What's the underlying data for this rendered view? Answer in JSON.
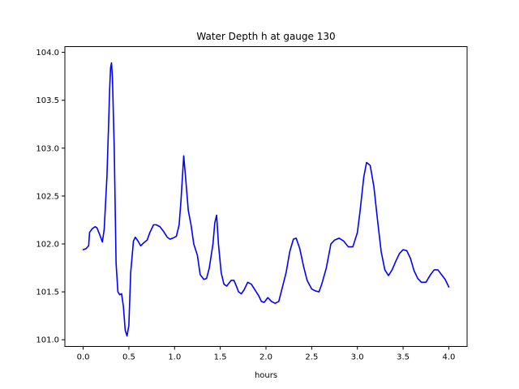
{
  "chart_data": {
    "type": "line",
    "title": "Water Depth h at gauge 130",
    "xlabel": "hours",
    "ylabel": "",
    "xlim": [
      -0.2,
      4.2
    ],
    "ylim": [
      100.93,
      104.06
    ],
    "xticks": [
      0.0,
      0.5,
      1.0,
      1.5,
      2.0,
      2.5,
      3.0,
      3.5,
      4.0
    ],
    "xtick_labels": [
      "0.0",
      "0.5",
      "1.0",
      "1.5",
      "2.0",
      "2.5",
      "3.0",
      "3.5",
      "4.0"
    ],
    "yticks": [
      101.0,
      101.5,
      102.0,
      102.5,
      103.0,
      103.5,
      104.0
    ],
    "ytick_labels": [
      "101.0",
      "101.5",
      "102.0",
      "102.5",
      "103.0",
      "103.5",
      "104.0"
    ],
    "grid": false,
    "series": [
      {
        "color": "#0000ff",
        "x": [
          0.0,
          0.03,
          0.06,
          0.07,
          0.1,
          0.13,
          0.15,
          0.18,
          0.21,
          0.23,
          0.26,
          0.28,
          0.29,
          0.3,
          0.31,
          0.32,
          0.34,
          0.36,
          0.38,
          0.4,
          0.42,
          0.44,
          0.46,
          0.48,
          0.5,
          0.52,
          0.55,
          0.57,
          0.6,
          0.63,
          0.66,
          0.7,
          0.73,
          0.77,
          0.8,
          0.84,
          0.88,
          0.92,
          0.95,
          0.98,
          1.02,
          1.05,
          1.07,
          1.1,
          1.12,
          1.15,
          1.18,
          1.21,
          1.25,
          1.28,
          1.32,
          1.35,
          1.38,
          1.42,
          1.44,
          1.46,
          1.48,
          1.51,
          1.54,
          1.57,
          1.62,
          1.65,
          1.68,
          1.7,
          1.73,
          1.76,
          1.8,
          1.84,
          1.88,
          1.92,
          1.95,
          1.98,
          2.02,
          2.06,
          2.1,
          2.14,
          2.18,
          2.22,
          2.26,
          2.3,
          2.33,
          2.37,
          2.41,
          2.45,
          2.5,
          2.54,
          2.58,
          2.61,
          2.66,
          2.71,
          2.75,
          2.8,
          2.85,
          2.9,
          2.95,
          3.0,
          3.03,
          3.07,
          3.1,
          3.14,
          3.18,
          3.22,
          3.26,
          3.3,
          3.34,
          3.38,
          3.42,
          3.46,
          3.5,
          3.54,
          3.58,
          3.62,
          3.66,
          3.7,
          3.75,
          3.8,
          3.84,
          3.88,
          3.92,
          3.96,
          4.0
        ],
        "y": [
          101.94,
          101.95,
          101.98,
          102.12,
          102.16,
          102.18,
          102.17,
          102.1,
          102.02,
          102.15,
          102.7,
          103.3,
          103.62,
          103.84,
          103.89,
          103.74,
          103.0,
          101.8,
          101.5,
          101.47,
          101.48,
          101.35,
          101.1,
          101.04,
          101.15,
          101.7,
          102.03,
          102.07,
          102.03,
          101.98,
          102.01,
          102.04,
          102.12,
          102.2,
          102.2,
          102.18,
          102.13,
          102.07,
          102.05,
          102.06,
          102.08,
          102.2,
          102.45,
          102.92,
          102.7,
          102.35,
          102.2,
          102.0,
          101.88,
          101.68,
          101.63,
          101.64,
          101.75,
          102.0,
          102.22,
          102.3,
          102.0,
          101.7,
          101.58,
          101.56,
          101.62,
          101.62,
          101.55,
          101.5,
          101.48,
          101.52,
          101.6,
          101.58,
          101.52,
          101.46,
          101.4,
          101.39,
          101.44,
          101.4,
          101.38,
          101.4,
          101.55,
          101.7,
          101.92,
          102.05,
          102.06,
          101.95,
          101.77,
          101.62,
          101.53,
          101.51,
          101.5,
          101.58,
          101.75,
          102.0,
          102.04,
          102.06,
          102.03,
          101.97,
          101.97,
          102.12,
          102.35,
          102.7,
          102.85,
          102.82,
          102.6,
          102.25,
          101.92,
          101.73,
          101.67,
          101.73,
          101.82,
          101.9,
          101.94,
          101.93,
          101.85,
          101.72,
          101.64,
          101.6,
          101.6,
          101.68,
          101.73,
          101.73,
          101.68,
          101.63,
          101.55
        ]
      }
    ]
  }
}
